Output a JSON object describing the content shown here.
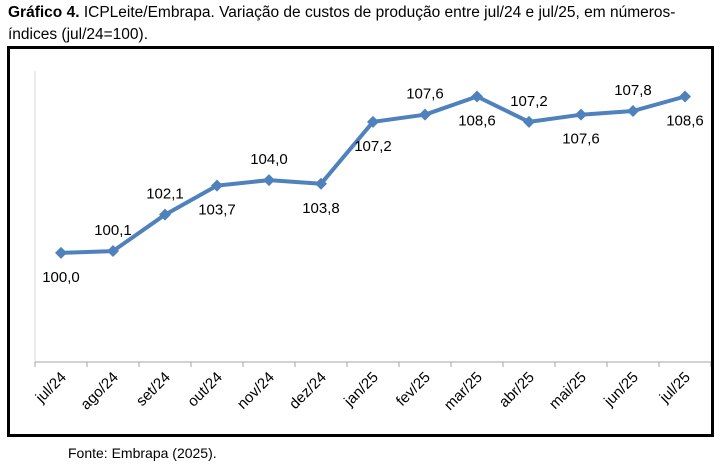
{
  "caption": {
    "label": "Gráfico 4.",
    "text": "ICPLeite/Embrapa. Variação de custos de produção entre jul/24 e jul/25, em números-índices (jul/24=100)."
  },
  "source": "Fonte: Embrapa (2025).",
  "chart_data": {
    "type": "line",
    "title": "",
    "xlabel": "",
    "ylabel": "",
    "categories": [
      "jul/24",
      "ago/24",
      "set/24",
      "out/24",
      "nov/24",
      "dez/24",
      "jan/25",
      "fev/25",
      "mar/25",
      "abr/25",
      "mai/25",
      "jun/25",
      "jul/25"
    ],
    "series": [
      {
        "values": [
          100.0,
          100.1,
          102.1,
          103.7,
          104.0,
          103.8,
          107.2,
          107.6,
          108.6,
          107.2,
          107.6,
          107.8,
          108.6
        ]
      }
    ],
    "data_labels": [
      "100,0",
      "100,1",
      "102,1",
      "103,7",
      "104,0",
      "103,8",
      "107,2",
      "107,6",
      "108,6",
      "107,2",
      "107,6",
      "107,8",
      "108,6"
    ],
    "ylim": [
      94,
      110
    ],
    "grid": false,
    "legend": "none",
    "color": "#4F81BD",
    "marker": "diamond"
  }
}
